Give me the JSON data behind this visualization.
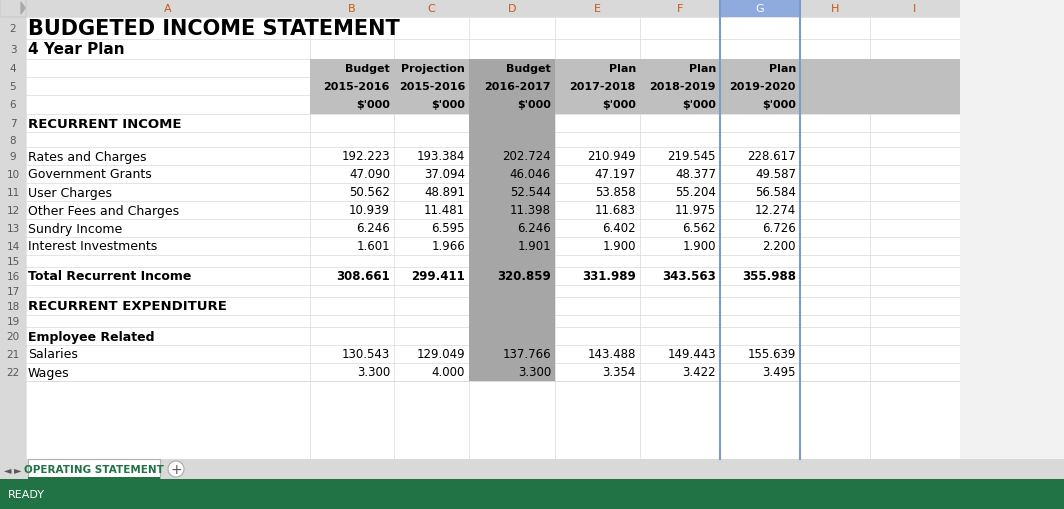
{
  "title": "BUDGETED INCOME STATEMENT",
  "subtitle": "4 Year Plan",
  "col_headers_row1": [
    "Budget",
    "Projection",
    "Budget",
    "Plan",
    "Plan",
    "Plan"
  ],
  "col_headers_row2": [
    "2015-2016",
    "2015-2016",
    "2016-2017",
    "2017-2018",
    "2018-2019",
    "2019-2020"
  ],
  "col_headers_row3": [
    "$'000",
    "$'000",
    "$'000",
    "$'000",
    "$'000",
    "$'000"
  ],
  "rows": [
    {
      "row": 7,
      "label": "RECURRENT INCOME",
      "values": null,
      "style": "section_header"
    },
    {
      "row": 8,
      "label": "",
      "values": null,
      "style": "empty"
    },
    {
      "row": 9,
      "label": "Rates and Charges",
      "values": [
        "192.223",
        "193.384",
        "202.724",
        "210.949",
        "219.545",
        "228.617"
      ],
      "style": "data"
    },
    {
      "row": 10,
      "label": "Government Grants",
      "values": [
        "47.090",
        "37.094",
        "46.046",
        "47.197",
        "48.377",
        "49.587"
      ],
      "style": "data"
    },
    {
      "row": 11,
      "label": "User Charges",
      "values": [
        "50.562",
        "48.891",
        "52.544",
        "53.858",
        "55.204",
        "56.584"
      ],
      "style": "data"
    },
    {
      "row": 12,
      "label": "Other Fees and Charges",
      "values": [
        "10.939",
        "11.481",
        "11.398",
        "11.683",
        "11.975",
        "12.274"
      ],
      "style": "data"
    },
    {
      "row": 13,
      "label": "Sundry Income",
      "values": [
        "6.246",
        "6.595",
        "6.246",
        "6.402",
        "6.562",
        "6.726"
      ],
      "style": "data"
    },
    {
      "row": 14,
      "label": "Interest Investments",
      "values": [
        "1.601",
        "1.966",
        "1.901",
        "1.900",
        "1.900",
        "2.200"
      ],
      "style": "data"
    },
    {
      "row": 15,
      "label": "",
      "values": null,
      "style": "empty"
    },
    {
      "row": 16,
      "label": "Total Recurrent Income",
      "values": [
        "308.661",
        "299.411",
        "320.859",
        "331.989",
        "343.563",
        "355.988"
      ],
      "style": "total"
    },
    {
      "row": 17,
      "label": "",
      "values": null,
      "style": "empty"
    },
    {
      "row": 18,
      "label": "RECURRENT EXPENDITURE",
      "values": null,
      "style": "section_header"
    },
    {
      "row": 19,
      "label": "",
      "values": null,
      "style": "empty"
    },
    {
      "row": 20,
      "label": "Employee Related",
      "values": null,
      "style": "subsection_header"
    },
    {
      "row": 21,
      "label": "Salaries",
      "values": [
        "130.543",
        "129.049",
        "137.766",
        "143.488",
        "149.443",
        "155.639"
      ],
      "style": "data"
    },
    {
      "row": 22,
      "label": "Wages",
      "values": [
        "3.300",
        "4.000",
        "3.300",
        "3.354",
        "3.422",
        "3.495"
      ],
      "style": "data"
    }
  ],
  "tab_label": "OPERATING STATEMENT",
  "col_header_orange": "#c65911",
  "title_color": "#000000",
  "col_letter_orange": "#c65911",
  "col_G_bg": "#8faadc",
  "col_G_text": "#ffffff",
  "col_letter_default": "#595959",
  "header_gray_bg": "#bfbfbf",
  "col_D_bg": "#a6a6a6",
  "row_header_bg": "#d9d9d9",
  "grid_color": "#d9d9d9",
  "white": "#ffffff",
  "tab_text_color": "#217346",
  "tab_border_color": "#217346",
  "status_bg": "#217346",
  "status_text": "#ffffff"
}
